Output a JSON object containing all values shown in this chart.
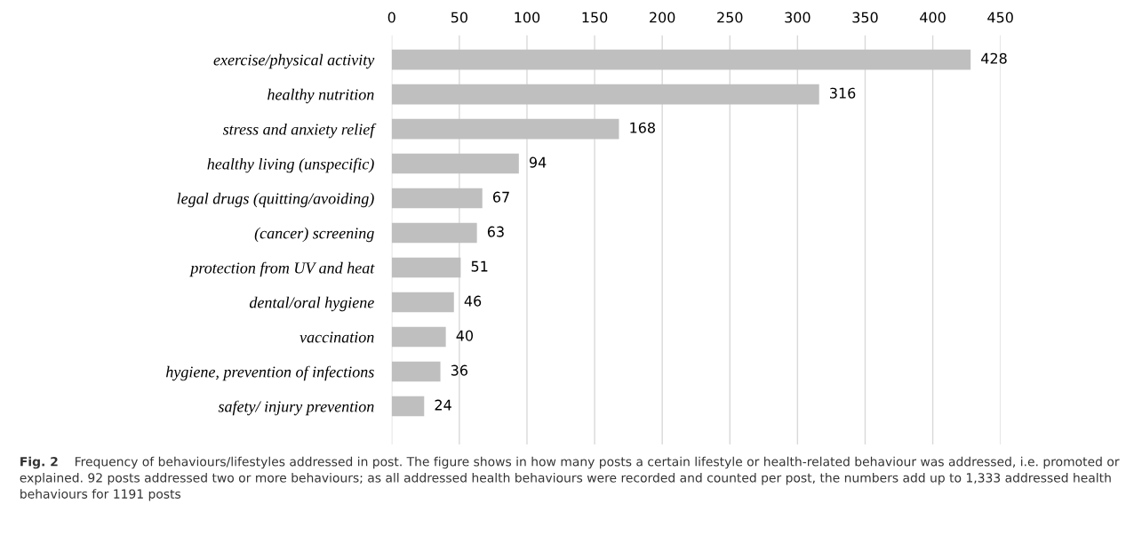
{
  "chart_data": {
    "type": "bar",
    "orientation": "horizontal",
    "categories": [
      "exercise/physical activity",
      "healthy nutrition",
      "stress and anxiety relief",
      "healthy living (unspecific)",
      "legal drugs (quitting/avoiding)",
      "(cancer) screening",
      "protection from UV and heat",
      "dental/oral hygiene",
      "vaccination",
      "hygiene, prevention of infections",
      "safety/ injury prevention"
    ],
    "values": [
      428,
      316,
      168,
      94,
      67,
      63,
      51,
      46,
      40,
      36,
      24
    ],
    "color": "#bfbfbf",
    "data_labels": true,
    "xlim": [
      0,
      450
    ],
    "xticks": [
      0,
      50,
      100,
      150,
      200,
      250,
      300,
      350,
      400,
      450
    ],
    "grid": "x",
    "legend": false,
    "annotations": [
      "Fig. 2",
      "Frequency of behaviours/lifestyles addressed in post. The figure shows in how many posts a certain lifestyle or health-related behaviour was addressed, i.e. promoted or explained. 92 posts addressed two or more behaviours; as all addressed health behaviours were recorded and counted per post, the numbers add up to 1,333 addressed health behaviours for 1191 posts"
    ]
  }
}
